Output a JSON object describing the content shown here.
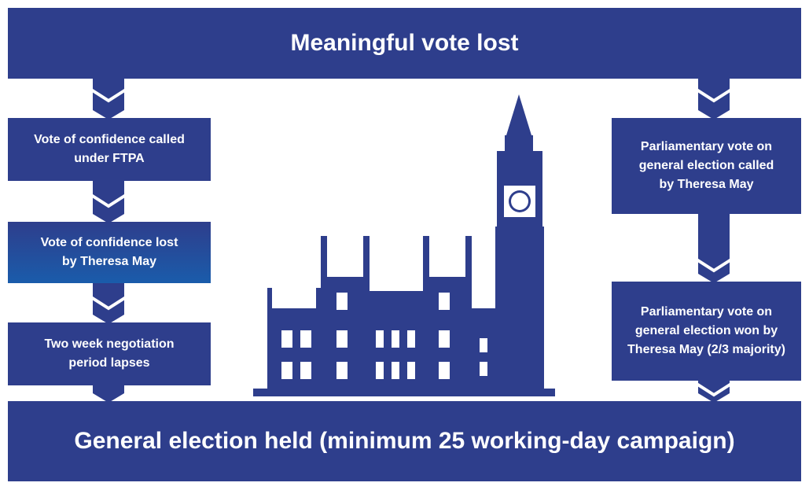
{
  "header": {
    "title": "Meaningful vote lost"
  },
  "left_steps": [
    {
      "lines": [
        "Vote of confidence called",
        "under FTPA"
      ]
    },
    {
      "lines": [
        "Vote of confidence lost",
        "by Theresa May"
      ]
    },
    {
      "lines": [
        "Two week negotiation",
        "period lapses"
      ]
    }
  ],
  "right_steps": [
    {
      "lines": [
        "Parliamentary vote on",
        "general election called",
        "by Theresa May"
      ]
    },
    {
      "lines": [
        "Parliamentary vote on",
        "general election won by",
        "Theresa May (2/3 majority)"
      ]
    }
  ],
  "footer": {
    "title": "General election held (minimum 25 working-day campaign)"
  }
}
